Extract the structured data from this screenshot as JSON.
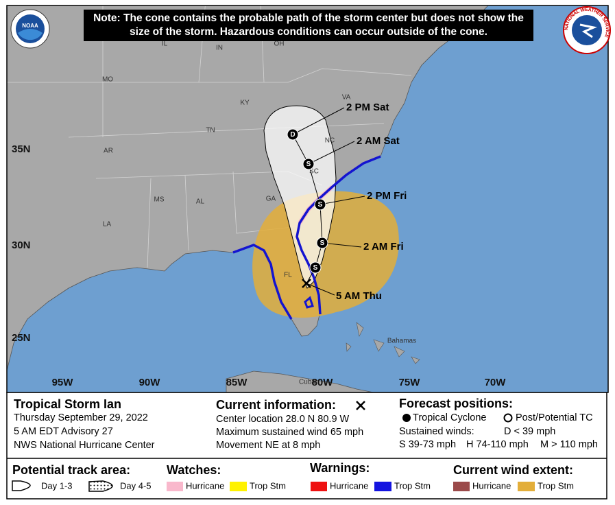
{
  "header": {
    "note": "Note: The cone contains the probable path of the storm center but does not show the size of the storm. Hazardous conditions can occur outside of the cone.",
    "noaa_logo": "NOAA",
    "nws_logo": "NATIONAL WEATHER SERVICE"
  },
  "map": {
    "state_labels": [
      "IL",
      "IN",
      "OH",
      "MO",
      "KY",
      "VA",
      "TN",
      "NC",
      "AR",
      "SC",
      "MS",
      "AL",
      "GA",
      "LA",
      "FL"
    ],
    "lat_labels": [
      "35N",
      "30N",
      "25N"
    ],
    "lon_labels": [
      "95W",
      "90W",
      "85W",
      "80W",
      "75W",
      "70W"
    ],
    "places": [
      "Bahamas",
      "Cuba"
    ],
    "current_position": "5 AM Thu",
    "forecast_points": [
      {
        "symbol": "S"
      },
      {
        "symbol": "S",
        "label": "2 AM Fri"
      },
      {
        "symbol": "S",
        "label": "2 PM Fri"
      },
      {
        "symbol": "S",
        "label": "2 AM Sat"
      },
      {
        "symbol": "D",
        "label": "2 PM Sat"
      }
    ]
  },
  "storm": {
    "title": "Tropical Storm Ian",
    "date": "Thursday September 29, 2022",
    "advisory": "5 AM EDT Advisory 27",
    "center": "NWS National Hurricane Center"
  },
  "current": {
    "heading": "Current information:",
    "lines": [
      "Center location 28.0 N 80.9 W",
      "Maximum sustained wind 65 mph",
      "Movement NE at 8 mph"
    ]
  },
  "forecast": {
    "heading": "Forecast positions:",
    "legend": [
      "Tropical Cyclone",
      "Post/Potential TC"
    ],
    "winds_heading": "Sustained winds:",
    "winds": [
      "D < 39 mph",
      "S 39-73 mph",
      "H 74-110 mph",
      "M > 110 mph"
    ]
  },
  "legend": {
    "track_area": {
      "heading": "Potential track area:",
      "items": [
        "Day 1-3",
        "Day 4-5"
      ]
    },
    "watches": {
      "heading": "Watches:",
      "items": [
        "Hurricane",
        "Trop Stm"
      ]
    },
    "warnings": {
      "heading": "Warnings:",
      "items": [
        "Hurricane",
        "Trop Stm"
      ]
    },
    "wind_extent": {
      "heading": "Current wind extent:",
      "items": [
        "Hurricane",
        "Trop Stm"
      ]
    }
  }
}
